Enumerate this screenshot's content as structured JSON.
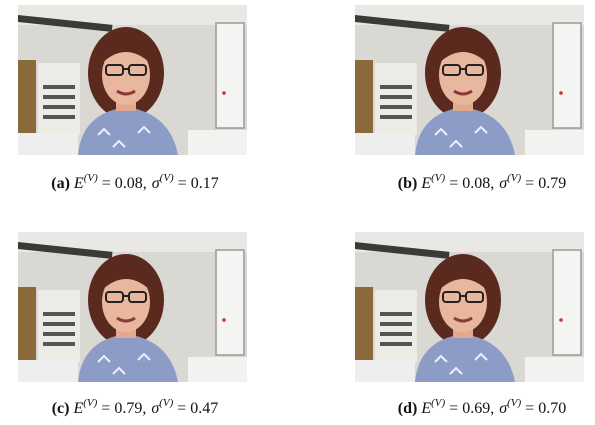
{
  "notation": {
    "e_symbol": "E",
    "sigma_symbol": "σ",
    "superscript": "(V)",
    "equals": "=",
    "separator": ","
  },
  "subfigures": [
    {
      "label": "(a)",
      "e_value": "0.08",
      "sigma_value": "0.17"
    },
    {
      "label": "(b)",
      "e_value": "0.08",
      "sigma_value": "0.79"
    },
    {
      "label": "(c)",
      "e_value": "0.79",
      "sigma_value": "0.47"
    },
    {
      "label": "(d)",
      "e_value": "0.69",
      "sigma_value": "0.70"
    }
  ]
}
